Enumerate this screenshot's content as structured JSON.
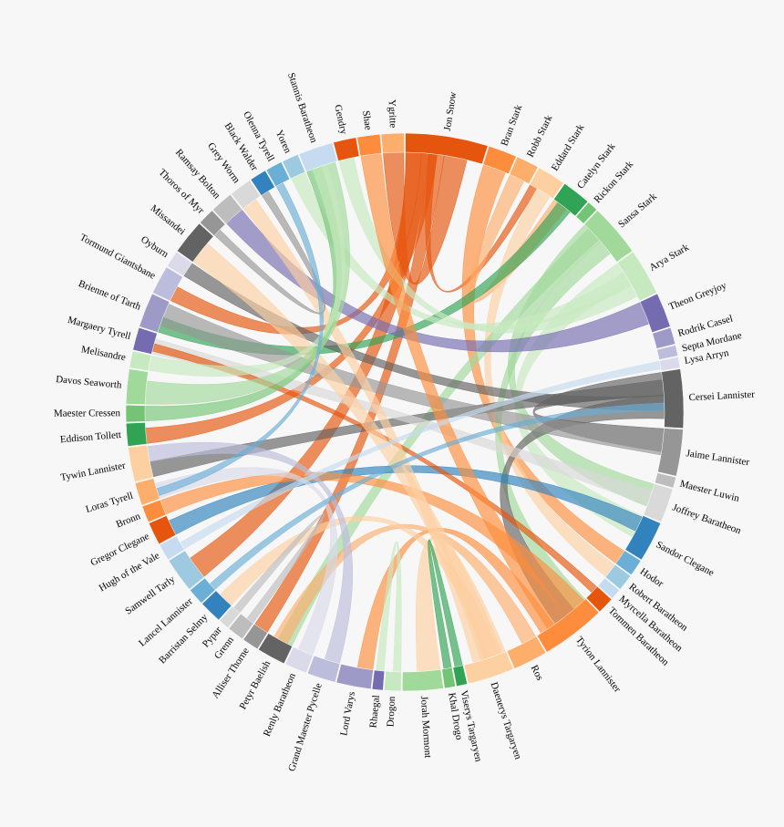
{
  "chart_data": {
    "type": "chord",
    "palette": [
      "#e6550d",
      "#fd8d3c",
      "#fdae6b",
      "#fdd0a2",
      "#31a354",
      "#74c476",
      "#a1d99b",
      "#c7e9c0",
      "#756bb1",
      "#9e9ac8",
      "#bcbddc",
      "#dadaeb",
      "#636363",
      "#969696",
      "#bdbdbd",
      "#d9d9d9",
      "#3182bd",
      "#6baed6",
      "#9ecae1",
      "#c6dbef"
    ],
    "nodes": [
      {
        "name": "Jon Snow",
        "value": 14
      },
      {
        "name": "Bran Stark",
        "value": 5
      },
      {
        "name": "Robb Stark",
        "value": 4
      },
      {
        "name": "Eddard Stark",
        "value": 5
      },
      {
        "name": "Catelyn Stark",
        "value": 5
      },
      {
        "name": "Rickon Stark",
        "value": 2
      },
      {
        "name": "Sansa Stark",
        "value": 9
      },
      {
        "name": "Arya Stark",
        "value": 8
      },
      {
        "name": "Theon Greyjoy",
        "value": 6
      },
      {
        "name": "Rodrik Cassel",
        "value": 3
      },
      {
        "name": "Septa Mordane",
        "value": 2
      },
      {
        "name": "Lysa Arryn",
        "value": 2
      },
      {
        "name": "Cersei Lannister",
        "value": 10
      },
      {
        "name": "Jaime Lannister",
        "value": 8
      },
      {
        "name": "Maester Luwin",
        "value": 2
      },
      {
        "name": "Joffrey Baratheon",
        "value": 6
      },
      {
        "name": "Sandor Clegane",
        "value": 7
      },
      {
        "name": "Hodor",
        "value": 3
      },
      {
        "name": "Robert Baratheon",
        "value": 3
      },
      {
        "name": "Myrcella Baratheon",
        "value": 2
      },
      {
        "name": "Tommen Baratheon",
        "value": 3
      },
      {
        "name": "Tyrion Lannister",
        "value": 11
      },
      {
        "name": "Ros",
        "value": 6
      },
      {
        "name": "Daenerys Targaryen",
        "value": 8
      },
      {
        "name": "Viserys Targaryen",
        "value": 2
      },
      {
        "name": "Khal Drogo",
        "value": 2
      },
      {
        "name": "Jorah Mormont",
        "value": 7
      },
      {
        "name": "Drogon",
        "value": 3
      },
      {
        "name": "Rhaegal",
        "value": 2
      },
      {
        "name": "Lord Varys",
        "value": 6
      },
      {
        "name": "Grand Maester Pycelle",
        "value": 5
      },
      {
        "name": "Renly Baratheon",
        "value": 4
      },
      {
        "name": "Petyr Baelish",
        "value": 5
      },
      {
        "name": "Alliser Thorne",
        "value": 3
      },
      {
        "name": "Grenn",
        "value": 3
      },
      {
        "name": "Pypar",
        "value": 2
      },
      {
        "name": "Barristan Selmy",
        "value": 4
      },
      {
        "name": "Lancel Lannister",
        "value": 3
      },
      {
        "name": "Samwell Tarly",
        "value": 6
      },
      {
        "name": "Hugh of the Vale",
        "value": 3
      },
      {
        "name": "Gregor Clegane",
        "value": 4
      },
      {
        "name": "Bronn",
        "value": 3
      },
      {
        "name": "Loras Tyrell",
        "value": 4
      },
      {
        "name": "Tywin Lannister",
        "value": 6
      },
      {
        "name": "Eddison Tollett",
        "value": 4
      },
      {
        "name": "Maester Cressen",
        "value": 3
      },
      {
        "name": "Davos Seaworth",
        "value": 6
      },
      {
        "name": "Melisandre",
        "value": 3
      },
      {
        "name": "Margaery Tyrell",
        "value": 4
      },
      {
        "name": "Brienne of Tarth",
        "value": 6
      },
      {
        "name": "Tormund Giantsbane",
        "value": 5
      },
      {
        "name": "Oyburn",
        "value": 3
      },
      {
        "name": "Missandei",
        "value": 6
      },
      {
        "name": "Thoros of Myr",
        "value": 3
      },
      {
        "name": "Ramsay Bolton",
        "value": 4
      },
      {
        "name": "Grey Worm",
        "value": 4
      },
      {
        "name": "Black Walder",
        "value": 3
      },
      {
        "name": "Olenna Tyrell",
        "value": 3
      },
      {
        "name": "Yoren",
        "value": 3
      },
      {
        "name": "Stannis Baratheon",
        "value": 6
      },
      {
        "name": "Gendry",
        "value": 4
      },
      {
        "name": "Shae",
        "value": 4
      },
      {
        "name": "Ygritte",
        "value": 4
      }
    ],
    "links": [
      {
        "source": 0,
        "target": 38,
        "value": 3
      },
      {
        "source": 0,
        "target": 33,
        "value": 2
      },
      {
        "source": 0,
        "target": 62,
        "value": 3
      },
      {
        "source": 0,
        "target": 50,
        "value": 2
      },
      {
        "source": 0,
        "target": 44,
        "value": 2
      },
      {
        "source": 0,
        "target": 3,
        "value": 1
      },
      {
        "source": 1,
        "target": 17,
        "value": 3
      },
      {
        "source": 2,
        "target": 4,
        "value": 2
      },
      {
        "source": 3,
        "target": 18,
        "value": 2
      },
      {
        "source": 4,
        "target": 49,
        "value": 2
      },
      {
        "source": 6,
        "target": 15,
        "value": 3
      },
      {
        "source": 6,
        "target": 21,
        "value": 2
      },
      {
        "source": 6,
        "target": 32,
        "value": 2
      },
      {
        "source": 7,
        "target": 16,
        "value": 3
      },
      {
        "source": 7,
        "target": 60,
        "value": 2
      },
      {
        "source": 7,
        "target": 58,
        "value": 2
      },
      {
        "source": 8,
        "target": 54,
        "value": 3
      },
      {
        "source": 12,
        "target": 13,
        "value": 3
      },
      {
        "source": 12,
        "target": 21,
        "value": 3
      },
      {
        "source": 12,
        "target": 43,
        "value": 2
      },
      {
        "source": 12,
        "target": 51,
        "value": 2
      },
      {
        "source": 13,
        "target": 49,
        "value": 3
      },
      {
        "source": 15,
        "target": 48,
        "value": 2
      },
      {
        "source": 16,
        "target": 40,
        "value": 2
      },
      {
        "source": 20,
        "target": 48,
        "value": 1
      },
      {
        "source": 21,
        "target": 41,
        "value": 3
      },
      {
        "source": 21,
        "target": 61,
        "value": 3
      },
      {
        "source": 21,
        "target": 29,
        "value": 2
      },
      {
        "source": 22,
        "target": 32,
        "value": 2
      },
      {
        "source": 23,
        "target": 26,
        "value": 3
      },
      {
        "source": 23,
        "target": 52,
        "value": 3
      },
      {
        "source": 23,
        "target": 55,
        "value": 2
      },
      {
        "source": 23,
        "target": 36,
        "value": 2
      },
      {
        "source": 24,
        "target": 25,
        "value": 1
      },
      {
        "source": 27,
        "target": 28,
        "value": 1
      },
      {
        "source": 30,
        "target": 43,
        "value": 2
      },
      {
        "source": 31,
        "target": 42,
        "value": 2
      },
      {
        "source": 34,
        "target": 35,
        "value": 1
      },
      {
        "source": 37,
        "target": 12,
        "value": 1
      },
      {
        "source": 39,
        "target": 11,
        "value": 1
      },
      {
        "source": 45,
        "target": 59,
        "value": 2
      },
      {
        "source": 46,
        "target": 59,
        "value": 3
      },
      {
        "source": 47,
        "target": 59,
        "value": 2
      },
      {
        "source": 53,
        "target": 56,
        "value": 1
      },
      {
        "source": 57,
        "target": 42,
        "value": 1
      }
    ]
  }
}
